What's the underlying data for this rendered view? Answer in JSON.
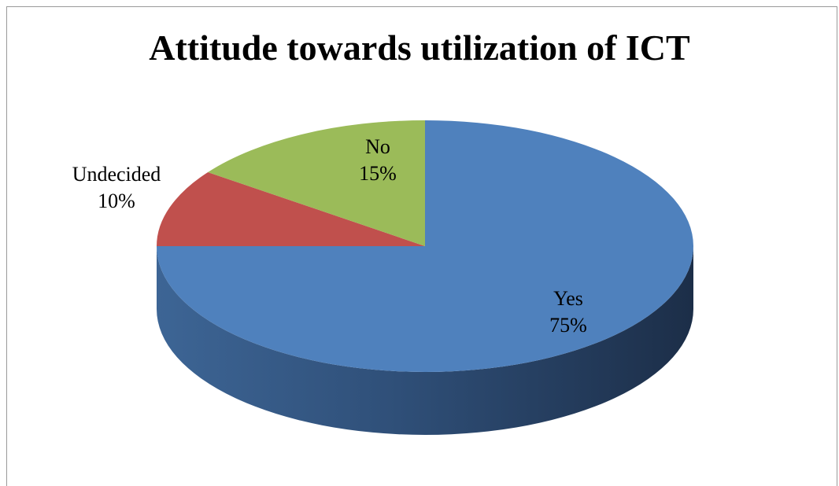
{
  "chart_data": {
    "type": "pie",
    "title": "Attitude towards utilization of ICT",
    "three_d": true,
    "slices": [
      {
        "label": "Yes",
        "value": 75,
        "percent": "75%",
        "color": "#4f81bd"
      },
      {
        "label": "Undecided",
        "value": 10,
        "percent": "10%",
        "color": "#c0504d"
      },
      {
        "label": "No",
        "value": 15,
        "percent": "15%",
        "color": "#9bbb59"
      }
    ]
  }
}
